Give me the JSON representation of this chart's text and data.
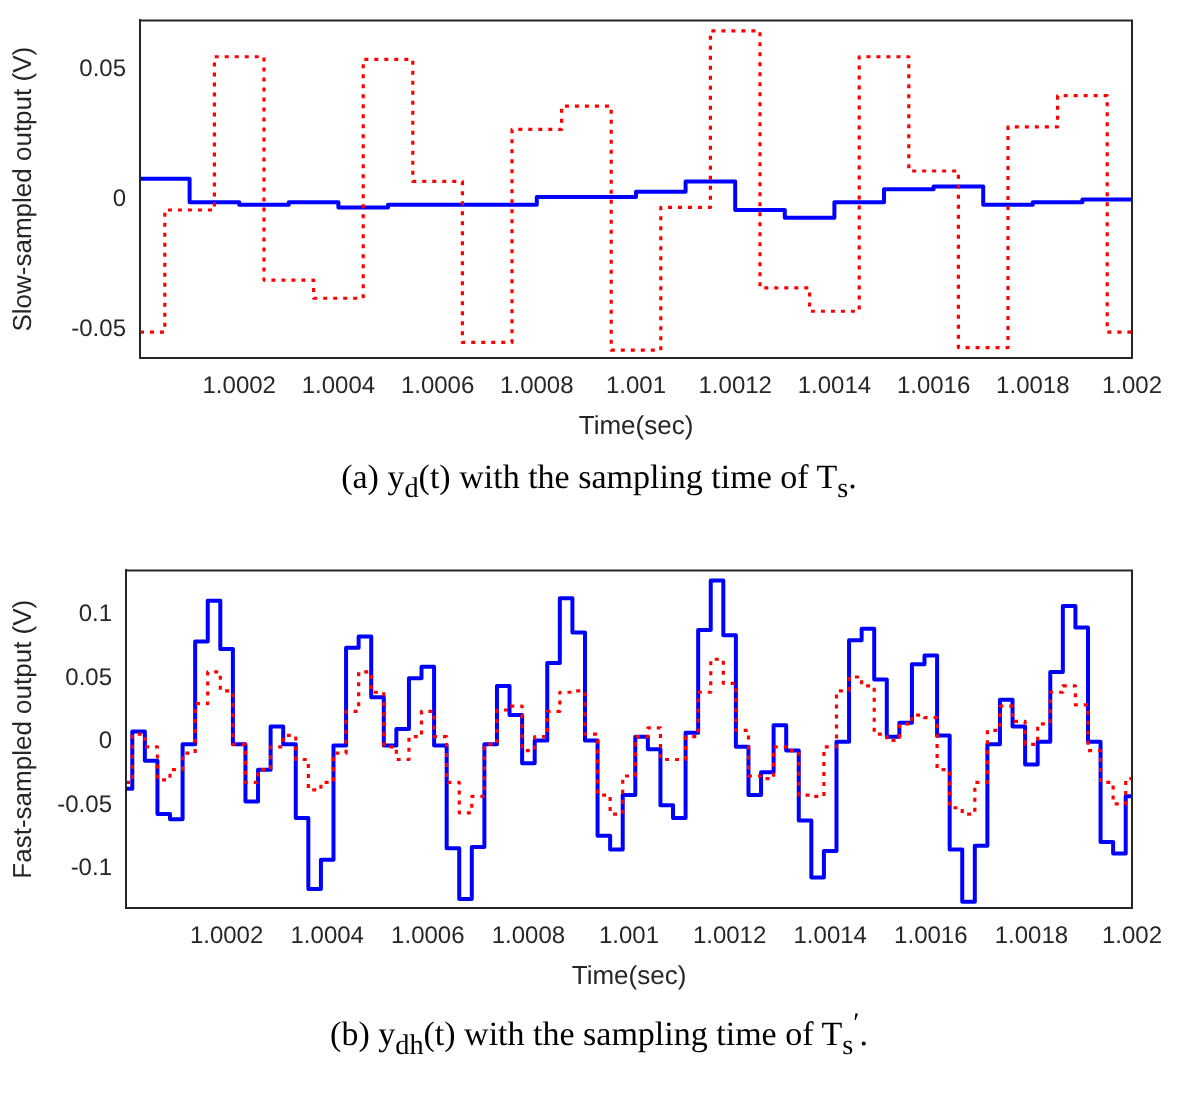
{
  "chart_data": [
    {
      "type": "step",
      "ylabel": "Slow-sampled output (V)",
      "xlabel": "Time(sec)",
      "xlim": [
        1.0,
        1.002
      ],
      "ylim": [
        -0.061,
        0.069
      ],
      "xticks": [
        1.0002,
        1.0004,
        1.0006,
        1.0008,
        1.001,
        1.0012,
        1.0014,
        1.0016,
        1.0018,
        1.002
      ],
      "yticks": [
        -0.05,
        0,
        0.05
      ],
      "marker": "none",
      "legend": false,
      "annotations": [
        "(a) y$_{d}$(t) with the sampling time of T$_{s}$."
      ],
      "series": [
        {
          "color": "#ff0000",
          "line_style": "dotted",
          "x": [
            1.0,
            1.00005,
            1.00015,
            1.00025,
            1.00035,
            1.00045,
            1.00055,
            1.00065,
            1.00075,
            1.00085,
            1.00095,
            1.00105,
            1.00115,
            1.00125,
            1.00135,
            1.00145,
            1.00155,
            1.00165,
            1.00175,
            1.00185,
            1.00195,
            1.002
          ],
          "values": [
            -0.051,
            -0.004,
            0.055,
            -0.031,
            -0.038,
            0.054,
            0.007,
            -0.055,
            0.027,
            0.036,
            -0.058,
            -0.003,
            0.065,
            -0.034,
            -0.043,
            0.055,
            0.011,
            -0.057,
            0.028,
            0.04,
            -0.051,
            -0.051
          ]
        },
        {
          "color": "#0000ff",
          "line_style": "solid",
          "x": [
            1.0,
            1.0001,
            1.0002,
            1.0003,
            1.0004,
            1.0005,
            1.0006,
            1.0007,
            1.0008,
            1.0009,
            1.001,
            1.0011,
            1.0012,
            1.0013,
            1.0014,
            1.0015,
            1.0016,
            1.0017,
            1.0018,
            1.0019,
            1.002
          ],
          "values": [
            0.008,
            -0.001,
            -0.002,
            -0.001,
            -0.003,
            -0.002,
            -0.002,
            -0.002,
            0.001,
            0.001,
            0.003,
            0.007,
            -0.004,
            -0.007,
            -0.001,
            0.004,
            0.005,
            -0.002,
            -0.001,
            0.0,
            0.0
          ]
        }
      ]
    },
    {
      "type": "step",
      "ylabel": "Fast-sampled output (V)",
      "xlabel": "Time(sec)",
      "xlim": [
        1.0,
        1.002
      ],
      "ylim": [
        -0.131,
        0.135
      ],
      "xticks": [
        1.0002,
        1.0004,
        1.0006,
        1.0008,
        1.001,
        1.0012,
        1.0014,
        1.0016,
        1.0018,
        1.002
      ],
      "yticks": [
        -0.1,
        -0.05,
        0,
        0.05,
        0.1
      ],
      "marker": "none",
      "legend": false,
      "annotations": [
        "(b) y$_{dh}$(t) with the sampling time of T$_{s}$$^{′}$."
      ],
      "x": [
        1.0,
        1.0000125,
        1.0000375,
        1.0000625,
        1.0000875,
        1.0001125,
        1.0001375,
        1.0001625,
        1.0001875,
        1.0002125,
        1.0002375,
        1.0002625,
        1.0002875,
        1.0003125,
        1.0003375,
        1.0003625,
        1.0003875,
        1.0004125,
        1.0004375,
        1.0004625,
        1.0004875,
        1.0005125,
        1.0005375,
        1.0005625,
        1.0005875,
        1.0006125,
        1.0006375,
        1.0006625,
        1.0006875,
        1.0007125,
        1.0007375,
        1.0007625,
        1.0007875,
        1.0008125,
        1.0008375,
        1.0008625,
        1.0008875,
        1.0009125,
        1.0009375,
        1.0009625,
        1.0009875,
        1.0010125,
        1.0010375,
        1.0010625,
        1.0010875,
        1.0011125,
        1.0011375,
        1.0011625,
        1.0011875,
        1.0012125,
        1.0012375,
        1.0012625,
        1.0012875,
        1.0013125,
        1.0013375,
        1.0013625,
        1.0013875,
        1.0014125,
        1.0014375,
        1.0014625,
        1.0014875,
        1.0015125,
        1.0015375,
        1.0015625,
        1.0015875,
        1.0016125,
        1.0016375,
        1.0016625,
        1.0016875,
        1.0017125,
        1.0017375,
        1.0017625,
        1.0017875,
        1.0018125,
        1.0018375,
        1.0018625,
        1.0018875,
        1.0019125,
        1.0019375,
        1.0019625,
        1.0019875,
        1.002
      ],
      "series": [
        {
          "color": "#ff0000",
          "line_style": "dotted",
          "values": [
            -0.032,
            0.006,
            -0.004,
            -0.03,
            -0.022,
            -0.009,
            0.03,
            0.055,
            0.04,
            -0.002,
            -0.032,
            -0.022,
            -0.004,
            0.005,
            -0.014,
            -0.038,
            -0.032,
            -0.009,
            0.024,
            0.055,
            0.039,
            -0.004,
            -0.014,
            0.004,
            0.024,
            0.004,
            -0.032,
            -0.056,
            -0.043,
            -0.002,
            0.025,
            0.028,
            -0.007,
            0.004,
            0.024,
            0.039,
            0.04,
            0.006,
            -0.042,
            -0.057,
            -0.027,
            0.004,
            0.011,
            -0.014,
            -0.014,
            0.004,
            0.039,
            0.065,
            0.046,
            0.009,
            -0.027,
            -0.029,
            -0.004,
            -0.007,
            -0.042,
            -0.043,
            -0.004,
            0.04,
            0.051,
            0.044,
            0.006,
            0.001,
            0.014,
            0.021,
            0.019,
            -0.022,
            -0.052,
            -0.057,
            -0.032,
            0.009,
            0.028,
            0.016,
            -0.002,
            0.014,
            0.039,
            0.044,
            0.029,
            -0.007,
            -0.032,
            -0.049,
            -0.029,
            -0.029
          ]
        },
        {
          "color": "#0000ff",
          "line_style": "solid",
          "values": [
            -0.037,
            0.008,
            -0.015,
            -0.057,
            -0.061,
            -0.002,
            0.079,
            0.111,
            0.073,
            -0.002,
            -0.047,
            -0.022,
            0.012,
            -0.002,
            -0.06,
            -0.116,
            -0.093,
            -0.003,
            0.074,
            0.083,
            0.035,
            -0.003,
            0.01,
            0.05,
            0.059,
            -0.003,
            -0.084,
            -0.124,
            -0.083,
            -0.002,
            0.044,
            0.021,
            -0.017,
            0.001,
            0.062,
            0.113,
            0.086,
            0.001,
            -0.074,
            -0.085,
            -0.042,
            0.004,
            -0.006,
            -0.05,
            -0.06,
            0.007,
            0.088,
            0.127,
            0.084,
            -0.004,
            -0.042,
            -0.024,
            0.013,
            -0.007,
            -0.062,
            -0.107,
            -0.086,
            0.0,
            0.08,
            0.089,
            0.049,
            0.004,
            0.015,
            0.061,
            0.068,
            0.005,
            -0.085,
            -0.126,
            -0.082,
            -0.002,
            0.033,
            0.012,
            -0.018,
            0.0,
            0.055,
            0.107,
            0.09,
            0.0,
            -0.079,
            -0.088,
            -0.043,
            -0.043
          ]
        }
      ]
    }
  ]
}
